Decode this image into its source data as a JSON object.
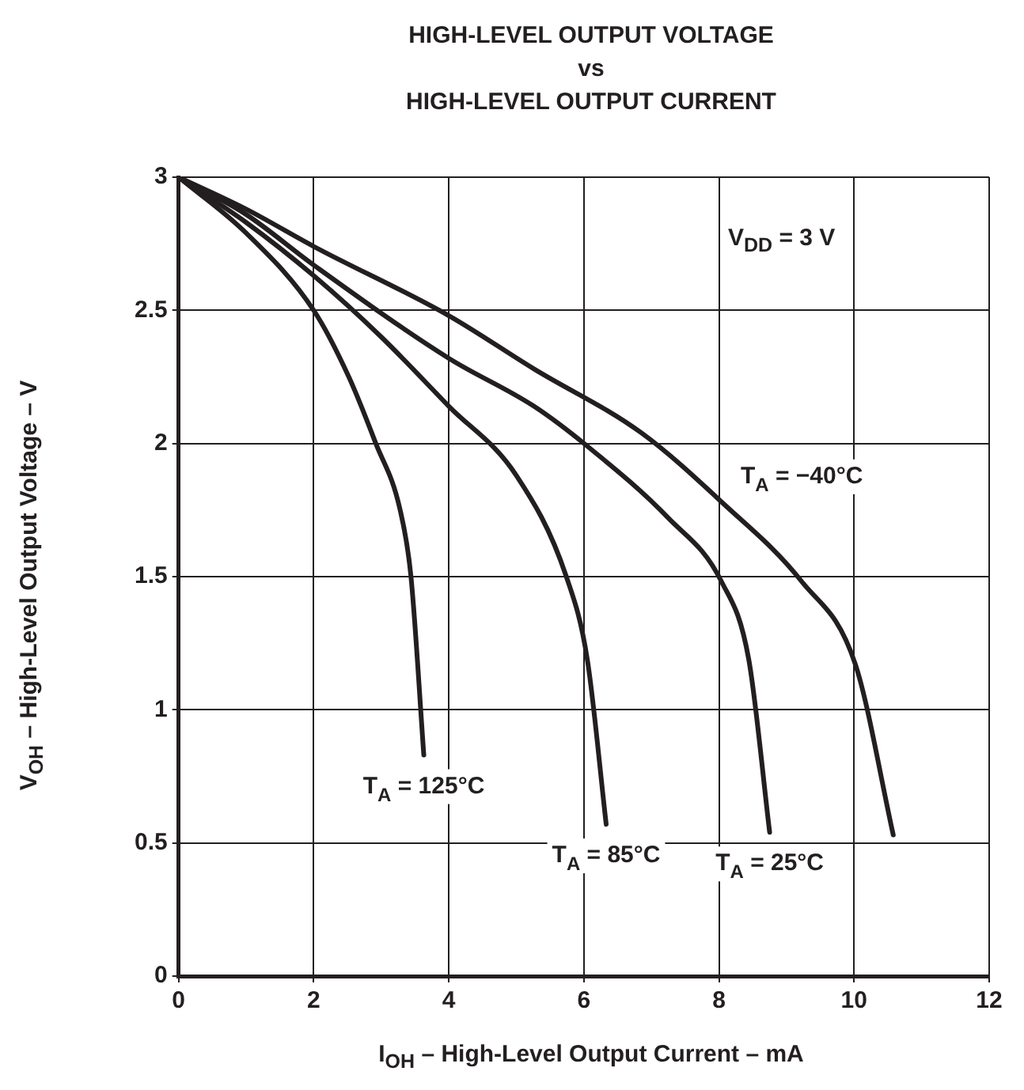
{
  "chart_data": {
    "type": "line",
    "title": "HIGH-LEVEL OUTPUT VOLTAGE\nvs\nHIGH-LEVEL OUTPUT CURRENT",
    "xlabel": "I$_{OH}$ – High-Level Output Current – mA",
    "ylabel": "V$_{OH}$ – High-Level Output Voltage – V",
    "annotations": [
      "V$_{DD}$ = 3 V"
    ],
    "xlim": [
      0,
      12
    ],
    "xticks": [
      0,
      2,
      4,
      6,
      8,
      10,
      12
    ],
    "ylim": [
      0,
      3
    ],
    "yticks": [
      0,
      0.5,
      1,
      1.5,
      2,
      2.5,
      3
    ],
    "grid": true,
    "legend": false,
    "marker": "none",
    "line_style": "solid",
    "series": [
      {
        "name": "T$_{A}$ = 125°C",
        "color": "#231f20",
        "x": [
          0,
          1,
          2,
          2.52,
          2.92,
          3.28,
          3.44,
          3.63
        ],
        "values": [
          3,
          2.79,
          2.5,
          2.25,
          2,
          1.75,
          1.5,
          0.83
        ]
      },
      {
        "name": "T$_{A}$ = 85°C",
        "color": "#231f20",
        "x": [
          0,
          1,
          2,
          3,
          4,
          5,
          5.74,
          6.05,
          6.33
        ],
        "values": [
          3,
          2.83,
          2.63,
          2.4,
          2.14,
          1.88,
          1.5,
          1.19,
          0.57
        ]
      },
      {
        "name": "T$_{A}$ = 25°C",
        "color": "#231f20",
        "x": [
          0,
          1,
          2,
          4,
          5.26,
          6.05,
          7.25,
          8.04,
          8.44,
          8.75
        ],
        "values": [
          3,
          2.86,
          2.67,
          2.32,
          2.14,
          1.99,
          1.72,
          1.48,
          1.19,
          0.54
        ]
      },
      {
        "name": "T$_{A}$ = −40°C",
        "color": "#231f20",
        "x": [
          0,
          1,
          2,
          4,
          5.26,
          6.85,
          8.04,
          9.23,
          10.02,
          10.58
        ],
        "values": [
          3,
          2.88,
          2.74,
          2.48,
          2.28,
          2.04,
          1.78,
          1.48,
          1.17,
          0.53
        ]
      }
    ]
  }
}
